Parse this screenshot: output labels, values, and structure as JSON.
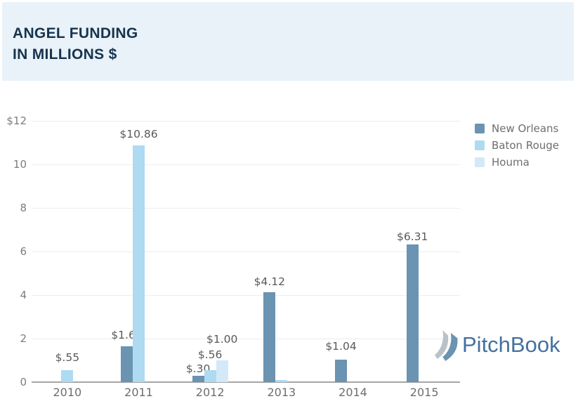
{
  "header": {
    "title_line1": "ANGEL FUNDING",
    "title_line2": "IN MILLIONS $"
  },
  "branding": {
    "logo_text": "PitchBook"
  },
  "colors": {
    "new_orleans": "#6b93b2",
    "baton_rouge": "#aedaf2",
    "houma": "#d3e9f7",
    "header_bg": "#e9f2f9",
    "header_text": "#17344e",
    "grid": "#ededed",
    "axis_line": "#a6a6a6",
    "axis_text": "#7d7d7d",
    "value_label_text": "#595959",
    "logo_blue": "#44719f",
    "logo_gray": "#b9c2c9"
  },
  "chart_data": {
    "type": "bar",
    "title": "ANGEL FUNDING IN MILLIONS $",
    "categories": [
      "2010",
      "2011",
      "2012",
      "2013",
      "2014",
      "2015"
    ],
    "series": [
      {
        "name": "New Orleans",
        "color_key": "new_orleans",
        "values": [
          null,
          1.66,
          0.3,
          4.12,
          1.04,
          6.31
        ],
        "labels": [
          null,
          "$1.66",
          "$.30",
          "$4.12",
          "$1.04",
          "$6.31"
        ],
        "label_gaps": [
          null,
          7,
          1,
          6,
          10,
          2
        ]
      },
      {
        "name": "Baton Rouge",
        "color_key": "baton_rouge",
        "values": [
          0.55,
          10.86,
          0.56,
          0.1,
          null,
          null
        ],
        "labels": [
          "$.55",
          "$10.86",
          "$.56",
          null,
          null,
          null
        ],
        "label_gaps": [
          9,
          7,
          13,
          null,
          null,
          null
        ]
      },
      {
        "name": "Houma",
        "color_key": "houma",
        "values": [
          null,
          null,
          1.0,
          null,
          null,
          null
        ],
        "labels": [
          null,
          null,
          "$1.00",
          null,
          null,
          null
        ],
        "label_gaps": [
          null,
          null,
          21,
          null,
          null,
          null
        ]
      }
    ],
    "y_axis": {
      "min": 0,
      "max": 12,
      "tick_labels": [
        "$12",
        "10",
        "8",
        "6",
        "4",
        "2",
        "0"
      ]
    },
    "x_axis": {
      "tick_labels": [
        "2010",
        "2011",
        "2012",
        "2013",
        "2014",
        "2015"
      ]
    },
    "grid": true,
    "legend_position": "top-right",
    "legend": [
      "New Orleans",
      "Baton Rouge",
      "Houma"
    ]
  }
}
